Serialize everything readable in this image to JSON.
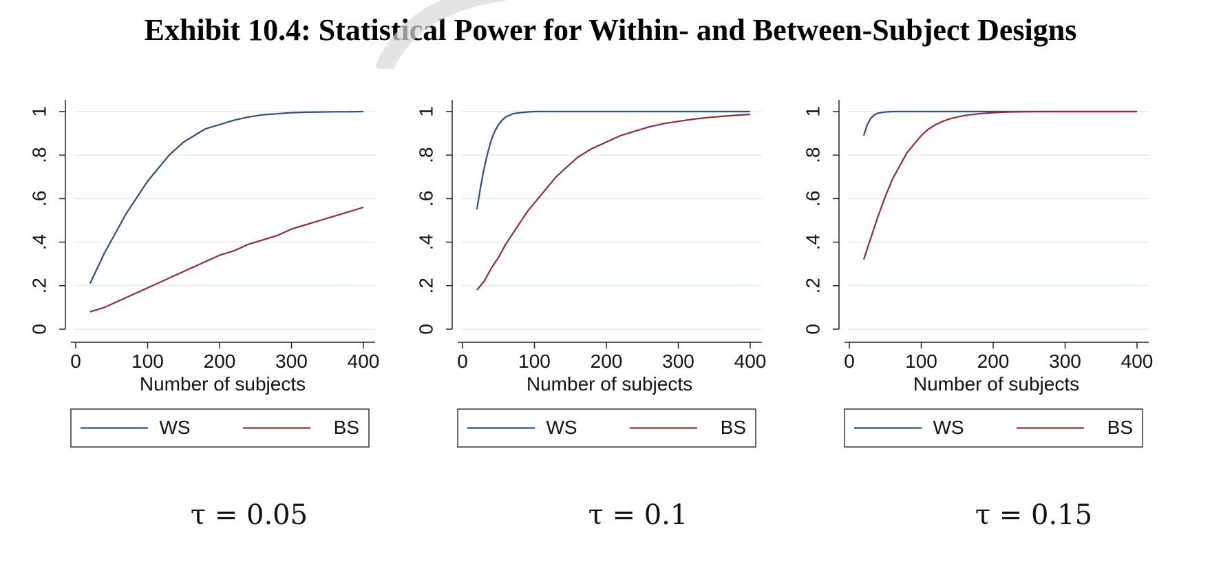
{
  "title": "Exhibit 10.4: Statistical Power for Within- and Between-Subject Designs",
  "colors": {
    "ws": "#2f4d76",
    "bs": "#8a2f3a",
    "grid": "#e3ebea",
    "axis": "#222222"
  },
  "panels": [
    {
      "caption": "τ = 0.05"
    },
    {
      "caption": "τ = 0.1"
    },
    {
      "caption": "τ = 0.15"
    }
  ],
  "chart_data": [
    {
      "type": "line",
      "xlabel": "Number of subjects",
      "ylabel": "",
      "xlim": [
        0,
        400
      ],
      "ylim": [
        0,
        1
      ],
      "xticks": [
        0,
        100,
        200,
        300,
        400
      ],
      "yticks": [
        0,
        0.2,
        0.4,
        0.6,
        0.8,
        1
      ],
      "ytick_labels": [
        "0",
        ".2",
        ".4",
        ".6",
        ".8",
        "1"
      ],
      "grid": true,
      "legend": "bottom",
      "series": [
        {
          "name": "WS",
          "x": [
            20,
            30,
            40,
            50,
            60,
            70,
            80,
            90,
            100,
            110,
            120,
            130,
            140,
            150,
            160,
            170,
            180,
            190,
            200,
            220,
            240,
            260,
            280,
            300,
            320,
            340,
            360,
            380,
            400
          ],
          "values": [
            0.21,
            0.28,
            0.35,
            0.41,
            0.47,
            0.53,
            0.58,
            0.63,
            0.68,
            0.72,
            0.76,
            0.8,
            0.83,
            0.86,
            0.88,
            0.9,
            0.92,
            0.93,
            0.94,
            0.96,
            0.975,
            0.985,
            0.99,
            0.995,
            0.997,
            0.998,
            0.999,
            0.999,
            1.0
          ]
        },
        {
          "name": "BS",
          "x": [
            20,
            40,
            60,
            80,
            100,
            120,
            140,
            160,
            180,
            200,
            220,
            240,
            260,
            280,
            300,
            320,
            340,
            360,
            380,
            400
          ],
          "values": [
            0.08,
            0.1,
            0.13,
            0.16,
            0.19,
            0.22,
            0.25,
            0.28,
            0.31,
            0.34,
            0.36,
            0.39,
            0.41,
            0.43,
            0.46,
            0.48,
            0.5,
            0.52,
            0.54,
            0.56
          ]
        }
      ]
    },
    {
      "type": "line",
      "xlabel": "Number of subjects",
      "ylabel": "",
      "xlim": [
        0,
        400
      ],
      "ylim": [
        0,
        1
      ],
      "xticks": [
        0,
        100,
        200,
        300,
        400
      ],
      "yticks": [
        0,
        0.2,
        0.4,
        0.6,
        0.8,
        1
      ],
      "ytick_labels": [
        "0",
        ".2",
        ".4",
        ".6",
        ".8",
        "1"
      ],
      "grid": true,
      "legend": "bottom",
      "series": [
        {
          "name": "WS",
          "x": [
            20,
            25,
            30,
            35,
            40,
            45,
            50,
            55,
            60,
            70,
            80,
            90,
            100,
            150,
            200,
            300,
            400
          ],
          "values": [
            0.55,
            0.65,
            0.74,
            0.81,
            0.87,
            0.91,
            0.94,
            0.96,
            0.975,
            0.99,
            0.995,
            0.998,
            1.0,
            1.0,
            1.0,
            1.0,
            1.0
          ]
        },
        {
          "name": "BS",
          "x": [
            20,
            30,
            40,
            50,
            60,
            70,
            80,
            90,
            100,
            110,
            120,
            130,
            140,
            150,
            160,
            180,
            200,
            220,
            240,
            260,
            280,
            300,
            320,
            340,
            360,
            380,
            400
          ],
          "values": [
            0.18,
            0.22,
            0.28,
            0.33,
            0.39,
            0.44,
            0.49,
            0.54,
            0.58,
            0.62,
            0.66,
            0.7,
            0.73,
            0.76,
            0.79,
            0.83,
            0.86,
            0.89,
            0.91,
            0.93,
            0.945,
            0.955,
            0.965,
            0.972,
            0.978,
            0.983,
            0.987
          ]
        }
      ]
    },
    {
      "type": "line",
      "xlabel": "Number of subjects",
      "ylabel": "",
      "xlim": [
        0,
        400
      ],
      "ylim": [
        0,
        1
      ],
      "xticks": [
        0,
        100,
        200,
        300,
        400
      ],
      "yticks": [
        0,
        0.2,
        0.4,
        0.6,
        0.8,
        1
      ],
      "ytick_labels": [
        "0",
        ".2",
        ".4",
        ".6",
        ".8",
        "1"
      ],
      "grid": true,
      "legend": "bottom",
      "series": [
        {
          "name": "WS",
          "x": [
            20,
            25,
            30,
            35,
            40,
            50,
            60,
            100,
            200,
            300,
            400
          ],
          "values": [
            0.89,
            0.94,
            0.97,
            0.985,
            0.993,
            0.998,
            1.0,
            1.0,
            1.0,
            1.0,
            1.0
          ]
        },
        {
          "name": "BS",
          "x": [
            20,
            30,
            40,
            50,
            60,
            70,
            80,
            90,
            100,
            110,
            120,
            130,
            140,
            160,
            180,
            200,
            220,
            260,
            300,
            400
          ],
          "values": [
            0.32,
            0.42,
            0.52,
            0.61,
            0.69,
            0.75,
            0.81,
            0.85,
            0.89,
            0.92,
            0.94,
            0.955,
            0.967,
            0.982,
            0.99,
            0.995,
            0.998,
            1.0,
            1.0,
            1.0
          ]
        }
      ]
    }
  ]
}
